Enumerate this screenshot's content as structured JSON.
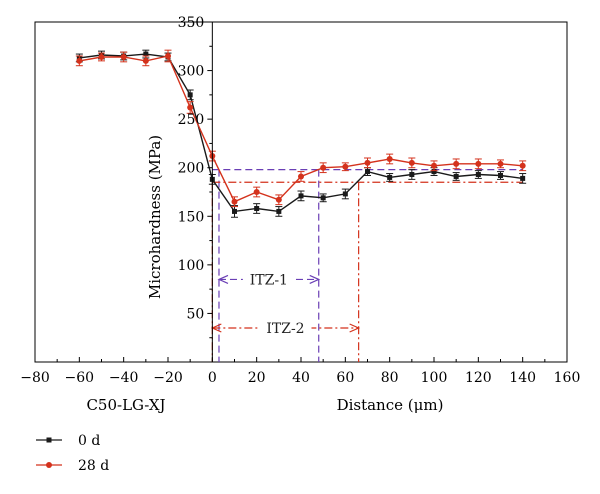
{
  "chart_data": {
    "type": "line",
    "title": "",
    "xlabel": "Distance (μm)",
    "xlabel_left": "C50-LG-XJ",
    "ylabel": "Microhardness (MPa)",
    "xlim": [
      -80,
      160
    ],
    "ylim": [
      0,
      350
    ],
    "xticks": [
      -80,
      -60,
      -40,
      -20,
      0,
      20,
      40,
      60,
      80,
      100,
      120,
      140,
      160
    ],
    "yticks": [
      50,
      100,
      150,
      200,
      250,
      300,
      350
    ],
    "grid": false,
    "legend_position": "bottom-left",
    "series": [
      {
        "name": "0 d",
        "color": "#1a1a1a",
        "marker": "square",
        "x": [
          -60,
          -50,
          -40,
          -30,
          -20,
          -10,
          0,
          10,
          20,
          30,
          40,
          50,
          60,
          70,
          80,
          90,
          100,
          110,
          120,
          130,
          140
        ],
        "y": [
          313,
          316,
          315,
          317,
          314,
          275,
          188,
          155,
          158,
          155,
          171,
          169,
          173,
          196,
          190,
          193,
          196,
          191,
          193,
          192,
          189
        ],
        "err": [
          4,
          4,
          4,
          4,
          4,
          5,
          5,
          6,
          5,
          5,
          5,
          4,
          5,
          4,
          4,
          5,
          4,
          4,
          4,
          4,
          5
        ]
      },
      {
        "name": "28 d",
        "color": "#d4321c",
        "marker": "circle",
        "x": [
          -60,
          -50,
          -40,
          -30,
          -20,
          -10,
          0,
          10,
          20,
          30,
          40,
          50,
          60,
          70,
          80,
          90,
          100,
          110,
          120,
          130,
          140
        ],
        "y": [
          310,
          314,
          314,
          310,
          315,
          262,
          212,
          165,
          175,
          167,
          191,
          200,
          201,
          205,
          209,
          205,
          202,
          204,
          204,
          204,
          202
        ],
        "err": [
          5,
          4,
          5,
          5,
          6,
          6,
          5,
          5,
          5,
          5,
          5,
          5,
          4,
          5,
          5,
          5,
          5,
          5,
          5,
          4,
          5
        ]
      }
    ],
    "annotations": [
      {
        "label": "ITZ-1",
        "color": "#6a3fb5",
        "x_start": 3,
        "x_end": 48,
        "level": 198,
        "arrow_y": 85
      },
      {
        "label": "ITZ-2",
        "color": "#d4321c",
        "x_start": 0,
        "x_end": 66,
        "level": 185,
        "arrow_y": 35
      }
    ]
  }
}
